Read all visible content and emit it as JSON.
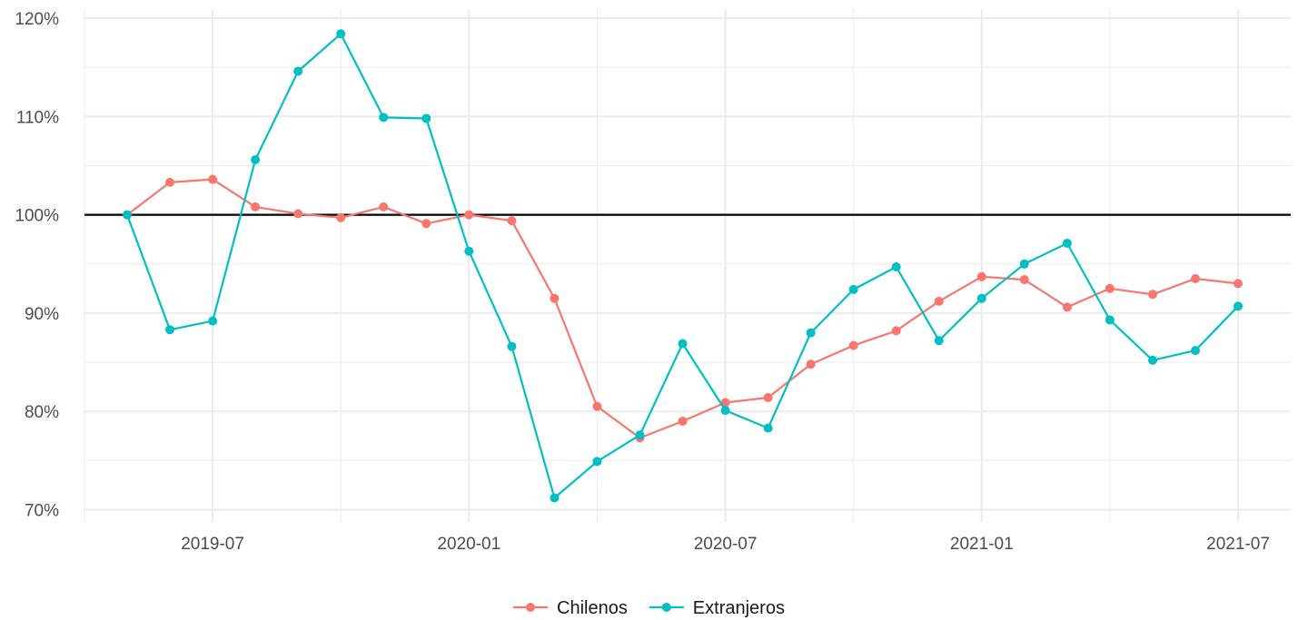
{
  "chart_data": {
    "type": "line",
    "title": "",
    "xlabel": "",
    "ylabel": "",
    "x": [
      "2019-05",
      "2019-06",
      "2019-07",
      "2019-08",
      "2019-09",
      "2019-10",
      "2019-11",
      "2019-12",
      "2020-01",
      "2020-02",
      "2020-03",
      "2020-04",
      "2020-05",
      "2020-06",
      "2020-07",
      "2020-08",
      "2020-09",
      "2020-10",
      "2020-11",
      "2020-12",
      "2021-01",
      "2021-02",
      "2021-03",
      "2021-04",
      "2021-05",
      "2021-06",
      "2021-07"
    ],
    "x_tick_labels": [
      "2019-07",
      "2020-01",
      "2020-07",
      "2021-01",
      "2021-07"
    ],
    "y_tick_labels": [
      "70%",
      "80%",
      "90%",
      "100%",
      "110%",
      "120%"
    ],
    "ylim": [
      70,
      120
    ],
    "reference_line": 100,
    "grid": true,
    "legend_position": "bottom",
    "series": [
      {
        "name": "Chilenos",
        "color": "#F8766D",
        "values": [
          100.0,
          103.3,
          103.6,
          100.8,
          100.1,
          99.7,
          100.8,
          99.1,
          100.0,
          99.4,
          91.5,
          80.5,
          77.3,
          79.0,
          80.9,
          81.4,
          84.8,
          86.7,
          88.2,
          91.2,
          93.7,
          93.4,
          90.6,
          92.5,
          91.9,
          93.5,
          93.0
        ]
      },
      {
        "name": "Extranjeros",
        "color": "#00BFC4",
        "values": [
          100.0,
          88.3,
          89.2,
          105.6,
          114.6,
          118.4,
          109.9,
          109.8,
          96.3,
          86.6,
          71.2,
          74.9,
          77.6,
          86.9,
          80.1,
          78.3,
          88.0,
          92.4,
          94.7,
          87.2,
          91.5,
          95.0,
          97.1,
          89.3,
          85.2,
          86.2,
          90.7
        ]
      }
    ]
  }
}
